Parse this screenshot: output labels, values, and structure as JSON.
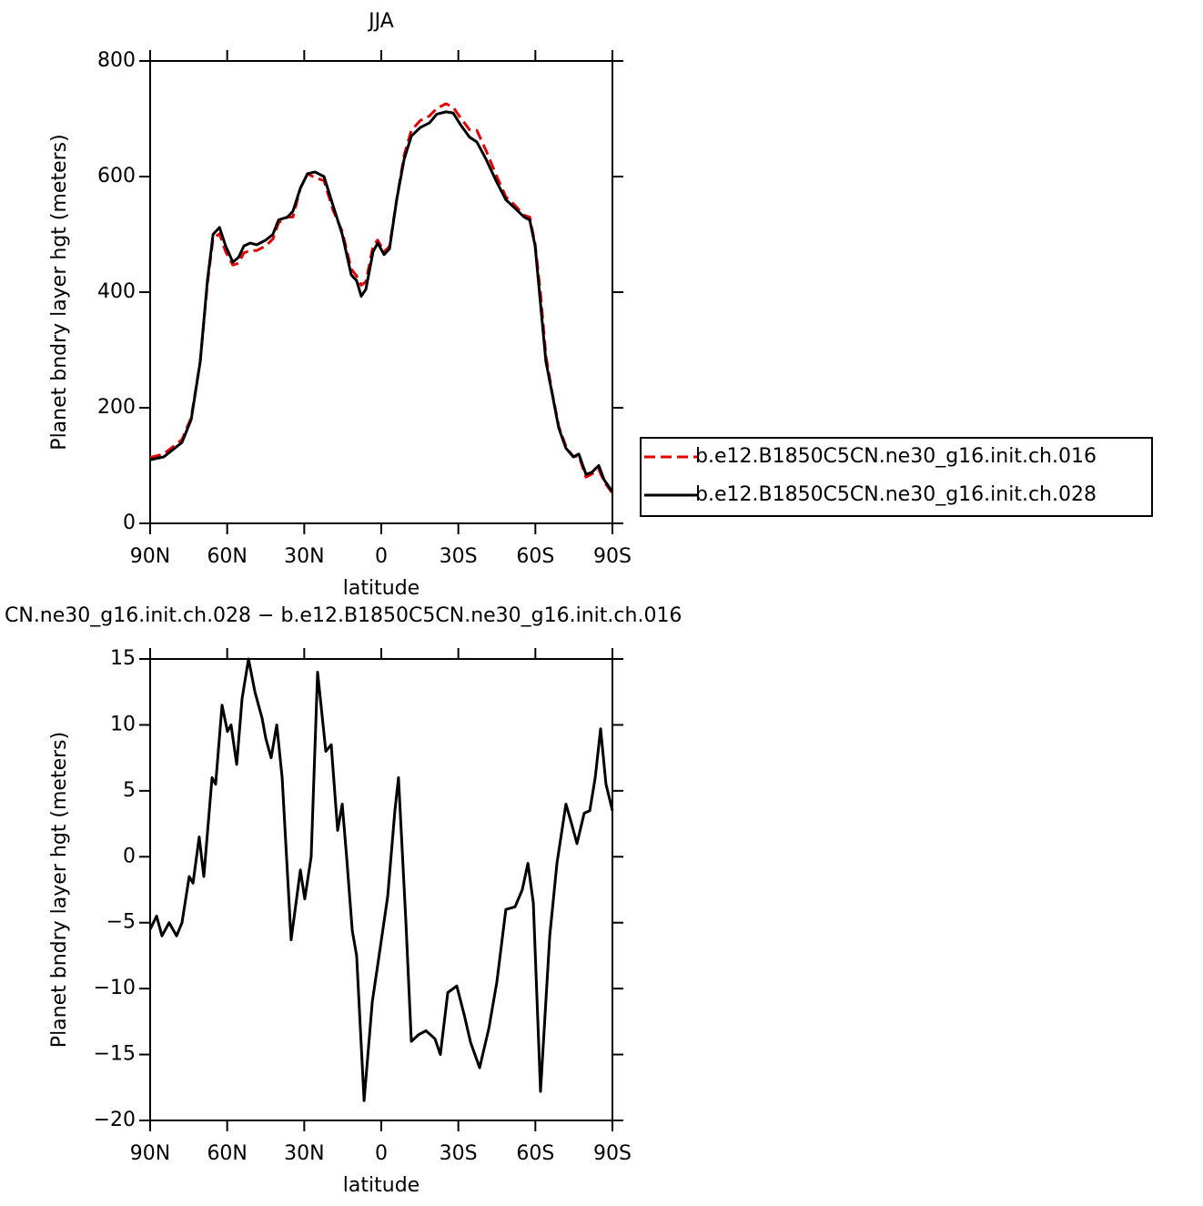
{
  "chart_data": [
    {
      "type": "line",
      "title": "JJA",
      "x_label": "latitude",
      "y_label": "Planet bndry layer hgt (meters)",
      "xlim": [
        90,
        -90
      ],
      "ylim": [
        0,
        800
      ],
      "xticks": [
        {
          "value": 90,
          "label": "90N"
        },
        {
          "value": 60,
          "label": "60N"
        },
        {
          "value": 30,
          "label": "30N"
        },
        0,
        {
          "value": -30,
          "label": "30S"
        },
        {
          "value": -60,
          "label": "60S"
        },
        {
          "value": -90,
          "label": "90S"
        }
      ],
      "yticks": [
        0,
        200,
        400,
        600,
        800
      ],
      "x": [
        90,
        84.7,
        81,
        77.6,
        74,
        70.5,
        67.7,
        65.5,
        63,
        60.6,
        57.8,
        55.6,
        53.5,
        51,
        48.5,
        45,
        42.2,
        40,
        36.5,
        34.4,
        31.5,
        28.7,
        25.8,
        22.3,
        18.8,
        15.2,
        11.7,
        9.6,
        7.8,
        6,
        3.2,
        1.4,
        -1.1,
        -3.2,
        -6,
        -8.9,
        -11.7,
        -15.2,
        -18.8,
        -21.6,
        -25.2,
        -28,
        -30.8,
        -34.4,
        -37.2,
        -40.8,
        -45,
        -48.5,
        -52.1,
        -55.6,
        -57.8,
        -59.9,
        -62,
        -64.1,
        -66.3,
        -69.1,
        -71.9,
        -74.8,
        -76.9,
        -79.7,
        -81.9,
        -84.7,
        -86.8,
        -90
      ],
      "legend": "right",
      "series": [
        {
          "name": "b.e12.B1850C5CN.ne30_g16.init.ch.016",
          "color": "#e00000",
          "dashed": true,
          "values": [
            114,
            120,
            133,
            145,
            183,
            280,
            415,
            493,
            501,
            470,
            447,
            450,
            468,
            472,
            472,
            480,
            492,
            520,
            530,
            530,
            580,
            605,
            598,
            593,
            542,
            505,
            440,
            428,
            412,
            418,
            480,
            490,
            470,
            479,
            560,
            637,
            680,
            697,
            705,
            718,
            726,
            720,
            702,
            681,
            680,
            645,
            600,
            565,
            550,
            533,
            530,
            483,
            398,
            290,
            232,
            168,
            133,
            115,
            117,
            80,
            85,
            93,
            72,
            52
          ]
        },
        {
          "name": "b.e12.B1850C5CN.ne30_g16.init.ch.028",
          "color": "#000000",
          "dashed": false,
          "values": [
            110,
            115,
            128,
            140,
            180,
            280,
            420,
            500,
            512,
            480,
            452,
            460,
            480,
            485,
            482,
            490,
            500,
            525,
            530,
            540,
            580,
            605,
            608,
            600,
            550,
            500,
            430,
            420,
            393,
            405,
            470,
            485,
            465,
            475,
            560,
            630,
            670,
            685,
            693,
            708,
            712,
            710,
            690,
            668,
            660,
            630,
            590,
            560,
            545,
            530,
            525,
            480,
            380,
            280,
            230,
            165,
            130,
            115,
            120,
            85,
            88,
            100,
            75,
            55
          ]
        }
      ]
    },
    {
      "type": "line",
      "title": "CN.ne30_g16.init.ch.028 − b.e12.B1850C5CN.ne30_g16.init.ch.016",
      "x_label": "latitude",
      "y_label": "Planet bndry layer hgt (meters)",
      "xlim": [
        90,
        -90
      ],
      "ylim": [
        -20,
        15
      ],
      "xticks": [
        {
          "value": 90,
          "label": "90N"
        },
        {
          "value": 60,
          "label": "60N"
        },
        {
          "value": 30,
          "label": "30N"
        },
        0,
        {
          "value": -30,
          "label": "30S"
        },
        {
          "value": -60,
          "label": "60S"
        },
        {
          "value": -90,
          "label": "90S"
        }
      ],
      "yticks": [
        {
          "value": -20,
          "label": "−20"
        },
        {
          "value": -15,
          "label": "−15"
        },
        {
          "value": -10,
          "label": "−10"
        },
        {
          "value": -5,
          "label": "−5"
        },
        0,
        5,
        10,
        15
      ],
      "x": [
        90,
        87.5,
        85.4,
        82.6,
        79.7,
        77.6,
        74.8,
        73.3,
        70.9,
        69.1,
        65.9,
        64.5,
        62,
        59.9,
        58.5,
        56.3,
        54.2,
        51.7,
        49.2,
        46.4,
        45,
        42.9,
        40.7,
        38.6,
        35.1,
        31.5,
        29.8,
        27.3,
        24.8,
        21.6,
        19.5,
        17,
        15.2,
        13.5,
        11.3,
        9.6,
        6.7,
        3.5,
        0.7,
        -2.5,
        -5.3,
        -6.7,
        -9.6,
        -11.7,
        -14.5,
        -17.4,
        -20.9,
        -23,
        -25.9,
        -29.4,
        -32.3,
        -34.8,
        -38.3,
        -41.9,
        -45,
        -48.5,
        -52.1,
        -54.9,
        -57.1,
        -59.2,
        -62,
        -65.6,
        -68.4,
        -71.9,
        -74.1,
        -76.2,
        -79,
        -81.2,
        -83.3,
        -85.4,
        -87.5,
        -90
      ],
      "series": [
        {
          "color": "#000000",
          "dashed": false,
          "values": [
            -5.5,
            -4.5,
            -6,
            -5,
            -6,
            -5,
            -1.5,
            -2,
            1.5,
            -1.5,
            6,
            5.5,
            11.5,
            9.5,
            10,
            7,
            12,
            15,
            12.5,
            10.5,
            9,
            7.5,
            10,
            6,
            -6.3,
            -1,
            -3.2,
            0,
            14,
            8,
            8.5,
            2,
            4,
            0,
            -5.6,
            -7.5,
            -18.5,
            -11,
            -7.3,
            -3,
            3.5,
            6,
            -5,
            -14,
            -13.5,
            -13.2,
            -13.8,
            -15,
            -10.3,
            -9.8,
            -12,
            -14.1,
            -16,
            -13,
            -9.5,
            -4,
            -3.8,
            -2.5,
            -0.5,
            -3.5,
            -17.8,
            -6,
            -0.5,
            4,
            2.5,
            1,
            3.3,
            3.5,
            6,
            9.7,
            5.5,
            3.5
          ]
        }
      ]
    }
  ]
}
